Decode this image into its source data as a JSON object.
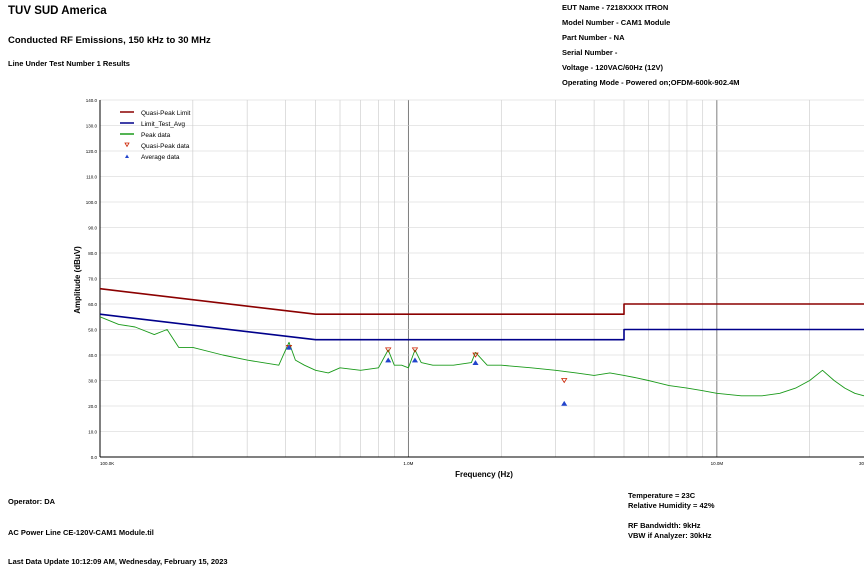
{
  "header": {
    "company": "TUV SUD America",
    "test_title": "Conducted RF Emissions, 150 kHz to 30 MHz",
    "line_under_test": "Line Under Test Number 1 Results"
  },
  "eut_info": [
    "EUT Name - 7218XXXX ITRON",
    "Model Number - CAM1 Module",
    "Part Number - NA",
    "Serial Number -",
    "Voltage - 120VAC/60Hz (12V)",
    "Operating Mode - Powered on;OFDM-600k-902.4M"
  ],
  "footer": {
    "operator": "Operator: DA",
    "file_name": "AC Power Line CE-120V-CAM1 Module.til",
    "last_update": "Last Data Update 10:12:09 AM, Wednesday, February 15, 2023",
    "temperature": "Temperature = 23C",
    "humidity": "Relative Humidity = 42%",
    "rf_bandwidth": "RF Bandwidth: 9kHz",
    "vbw": "VBW if Analyzer: 30kHz"
  },
  "colors": {
    "qp_limit": "#8b0000",
    "avg_limit": "#00008b",
    "peak": "#1a9a1a",
    "qp_marker": "#cc2200",
    "avg_marker": "#2244cc"
  },
  "chart_data": {
    "type": "line",
    "xscale": "log",
    "xlim": [
      0.1,
      30
    ],
    "ylim": [
      0,
      140
    ],
    "xlabel": "Frequency (Hz)",
    "ylabel": "Amplitude (dBuV)",
    "x_tick_labels": [
      {
        "value": 0.1,
        "label": "100.0K"
      },
      {
        "value": 1,
        "label": "1.0M"
      },
      {
        "value": 10,
        "label": "10.0M"
      },
      {
        "value": 30,
        "label": "30"
      }
    ],
    "y_ticks": [
      0,
      10,
      20,
      30,
      40,
      50,
      60,
      70,
      80,
      90,
      100,
      110,
      120,
      130,
      140
    ],
    "y_tick_labels": [
      "0.0",
      "10.0",
      "20.0",
      "30.0",
      "40.0",
      "50.0",
      "60.0",
      "70.0",
      "80.0",
      "90.0",
      "100.0",
      "110.0",
      "120.0",
      "130.0",
      "140.0"
    ],
    "grid": true,
    "legend_position": "top-left",
    "legend": [
      {
        "name": "Quasi-Peak Limit",
        "kind": "line",
        "color": "#8b0000"
      },
      {
        "name": "Limit_Test_Avg",
        "kind": "line",
        "color": "#00008b"
      },
      {
        "name": "Peak data",
        "kind": "line",
        "color": "#1a9a1a"
      },
      {
        "name": "Quasi-Peak data",
        "kind": "down-triangle",
        "color": "#cc2200"
      },
      {
        "name": "Average data",
        "kind": "up-triangle",
        "color": "#2244cc"
      }
    ],
    "series": [
      {
        "name": "Quasi-Peak Limit",
        "x": [
          0.1,
          0.5,
          5,
          5,
          30
        ],
        "y": [
          66,
          56,
          56,
          60,
          60
        ]
      },
      {
        "name": "Limit_Test_Avg",
        "x": [
          0.1,
          0.5,
          5,
          5,
          30
        ],
        "y": [
          56,
          46,
          46,
          50,
          50
        ]
      },
      {
        "name": "Peak data",
        "x": [
          0.1,
          0.115,
          0.13,
          0.15,
          0.165,
          0.18,
          0.2,
          0.25,
          0.3,
          0.38,
          0.41,
          0.43,
          0.46,
          0.5,
          0.55,
          0.6,
          0.7,
          0.8,
          0.86,
          0.9,
          0.95,
          1.0,
          1.05,
          1.1,
          1.2,
          1.4,
          1.6,
          1.65,
          1.8,
          2.0,
          2.5,
          3.0,
          3.5,
          4.0,
          4.5,
          5.0,
          5.5,
          6.0,
          7.0,
          8.0,
          9.0,
          10,
          12,
          14,
          16,
          18,
          20,
          22,
          24,
          26,
          28,
          30
        ],
        "y": [
          55,
          52,
          51,
          48,
          50,
          43,
          43,
          40,
          38,
          36,
          45,
          38,
          36,
          34,
          33,
          35,
          34,
          35,
          42,
          36,
          36,
          35,
          42,
          37,
          36,
          36,
          37,
          41,
          36,
          36,
          35,
          34,
          33,
          32,
          33,
          32,
          31,
          30,
          28,
          27,
          26,
          25,
          24,
          24,
          25,
          27,
          30,
          34,
          30,
          27,
          25,
          24
        ]
      },
      {
        "name": "Quasi-Peak data",
        "x": [
          0.41,
          0.86,
          1.05,
          1.65,
          3.2
        ],
        "y": [
          43,
          42,
          42,
          40,
          30
        ]
      },
      {
        "name": "Average data",
        "x": [
          0.41,
          0.86,
          1.05,
          1.65,
          3.2
        ],
        "y": [
          43,
          38,
          38,
          37,
          21
        ]
      }
    ]
  }
}
